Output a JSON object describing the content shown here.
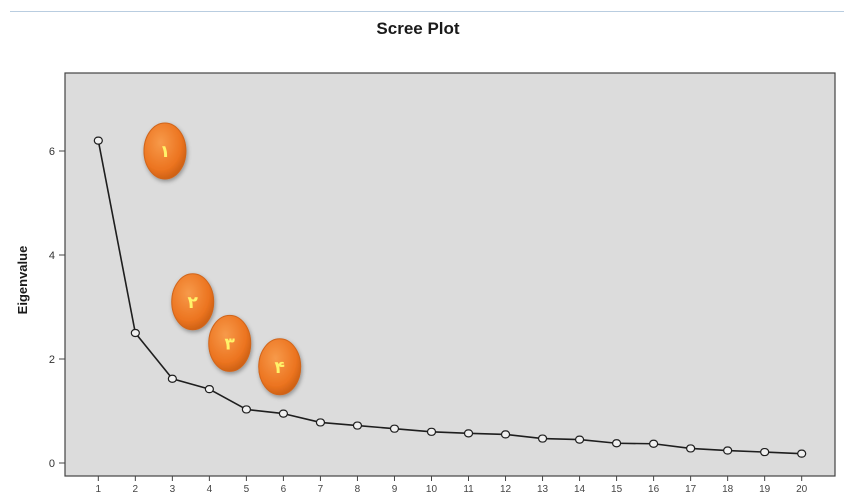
{
  "chart_data": {
    "type": "line",
    "title": "Scree Plot",
    "xlabel": "",
    "ylabel": "Eigenvalue",
    "x": [
      1,
      2,
      3,
      4,
      5,
      6,
      7,
      8,
      9,
      10,
      11,
      12,
      13,
      14,
      15,
      16,
      17,
      18,
      19,
      20
    ],
    "series": [
      {
        "values": [
          6.2,
          2.5,
          1.62,
          1.42,
          1.03,
          0.95,
          0.78,
          0.72,
          0.66,
          0.6,
          0.57,
          0.55,
          0.47,
          0.45,
          0.38,
          0.37,
          0.28,
          0.24,
          0.21,
          0.18
        ]
      }
    ],
    "xlim": [
      0.1,
      20.9
    ],
    "ylim": [
      -0.25,
      7.5
    ],
    "yticks": [
      0,
      2,
      4,
      6
    ],
    "xticks": [
      1,
      2,
      3,
      4,
      5,
      6,
      7,
      8,
      9,
      10,
      11,
      12,
      13,
      14,
      15,
      16,
      17,
      18,
      19,
      20
    ],
    "grid": false,
    "legend": "none",
    "annotations": [
      {
        "label": "١",
        "x": 2.8,
        "y": 6.0
      },
      {
        "label": "٢",
        "x": 3.55,
        "y": 3.1
      },
      {
        "label": "٣",
        "x": 4.55,
        "y": 2.3
      },
      {
        "label": "۴",
        "x": 5.9,
        "y": 1.85
      }
    ],
    "colors": {
      "plot_background": "#dcdcdc",
      "line": "#1e1e1e",
      "marker_fill": "#f0f0f0",
      "badge": "#ee7a24"
    }
  }
}
